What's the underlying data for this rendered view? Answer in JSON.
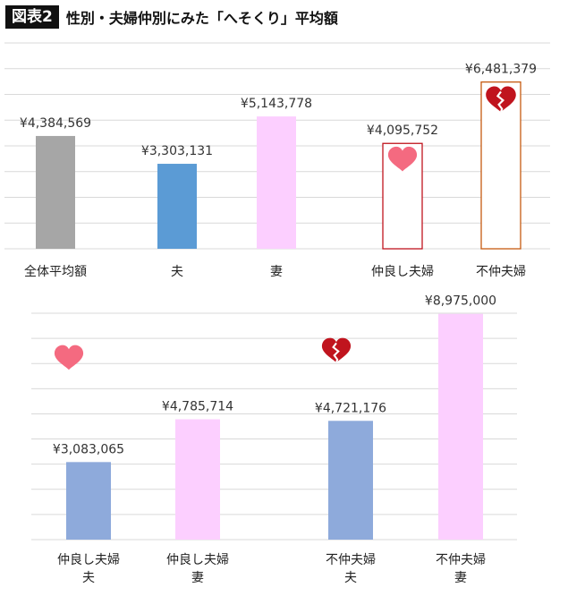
{
  "header": {
    "badge": "図表2",
    "title": "性別・夫婦仲別にみた「へそくり」平均額"
  },
  "colors": {
    "gray": "#a6a6a6",
    "blue": "#5b9bd5",
    "pink": "#fccfff",
    "lightblue": "#8eaadb",
    "heart": "#f46a80",
    "broken_heart": "#c0141e",
    "outline_red": "#c0141e",
    "outline_orange": "#c55a11",
    "grid": "#d9d9d9"
  },
  "chart_data": [
    {
      "type": "bar",
      "title": "",
      "categories": [
        "全体平均額",
        "夫",
        "妻",
        "仲良し夫婦",
        "不仲夫婦"
      ],
      "values": [
        4384569,
        3303131,
        5143778,
        4095752,
        6481379
      ],
      "value_labels": [
        "¥4,384,569",
        "¥3,303,131",
        "¥5,143,778",
        "¥4,095,752",
        "¥6,481,379"
      ],
      "bar_styles": [
        "gray",
        "blue",
        "pink",
        "outline_red",
        "outline_orange"
      ],
      "icons": [
        "",
        "",
        "",
        "heart-icon",
        "broken-heart-icon"
      ],
      "ylim": [
        0,
        8000000
      ],
      "grid": true,
      "xlabel": "",
      "ylabel": ""
    },
    {
      "type": "bar",
      "title": "",
      "categories": [
        [
          "仲良し夫婦",
          "夫"
        ],
        [
          "仲良し夫婦",
          "妻"
        ],
        [
          "不仲夫婦",
          "夫"
        ],
        [
          "不仲夫婦",
          "妻"
        ]
      ],
      "values": [
        3083065,
        4785714,
        4721176,
        8975000
      ],
      "value_labels": [
        "¥3,083,065",
        "¥4,785,714",
        "¥4,721,176",
        "¥8,975,000"
      ],
      "bar_styles": [
        "lightblue",
        "pink",
        "lightblue",
        "pink"
      ],
      "group_icons": [
        "heart-icon",
        "broken-heart-icon"
      ],
      "ylim": [
        0,
        9000000
      ],
      "grid": true,
      "xlabel": "",
      "ylabel": ""
    }
  ]
}
